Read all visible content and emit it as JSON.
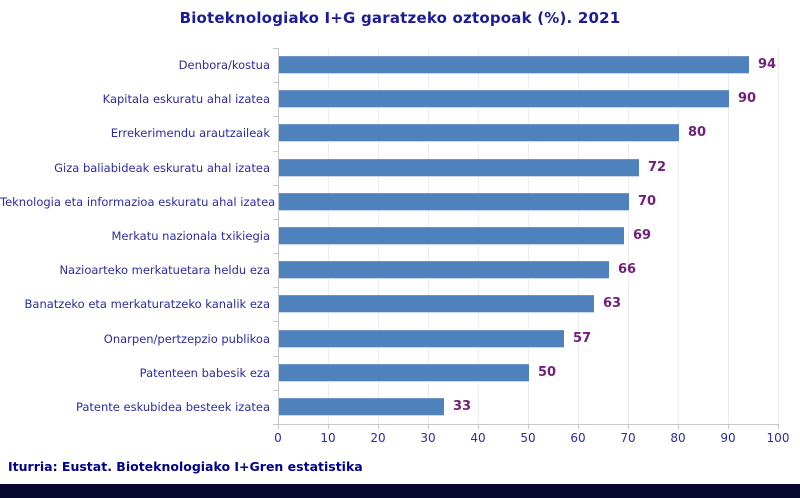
{
  "source": "Iturria: Eustat. Bioteknologiako I+Gren estatistika",
  "chart_data": {
    "type": "bar",
    "orientation": "horizontal",
    "title": "Bioteknologiako I+G garatzeko oztopoak (%). 2021",
    "categories": [
      "Denbora/kostua",
      "Kapitala eskuratu ahal izatea",
      "Errekerimendu arautzaileak",
      "Giza baliabideak eskuratu ahal izatea",
      "Teknologia eta informazioa eskuratu ahal izatea",
      "Merkatu nazionala txikiegia",
      "Nazioarteko merkatuetara heldu eza",
      "Banatzeko eta merkaturatzeko kanalik eza",
      "Onarpen/pertzepzio publikoa",
      "Patenteen babesik eza",
      "Patente eskubidea besteek izatea"
    ],
    "values": [
      94,
      90,
      80,
      72,
      70,
      69,
      66,
      63,
      57,
      50,
      33
    ],
    "xlim": [
      0,
      100
    ],
    "xticks": [
      0,
      10,
      20,
      30,
      40,
      50,
      60,
      70,
      80,
      90,
      100
    ],
    "grid": true,
    "data_labels": true,
    "legend": "none"
  },
  "colors": {
    "bar": "#4f81bd",
    "title": "#1c1c99",
    "category_label": "#2b2ba3",
    "value_label": "#6f1f7a",
    "tick_label": "#2b2ba3",
    "gridline": "#ececf1",
    "axis": "#c6c6ce",
    "source_text": "#00008b",
    "footer_bar": "#08082e"
  }
}
